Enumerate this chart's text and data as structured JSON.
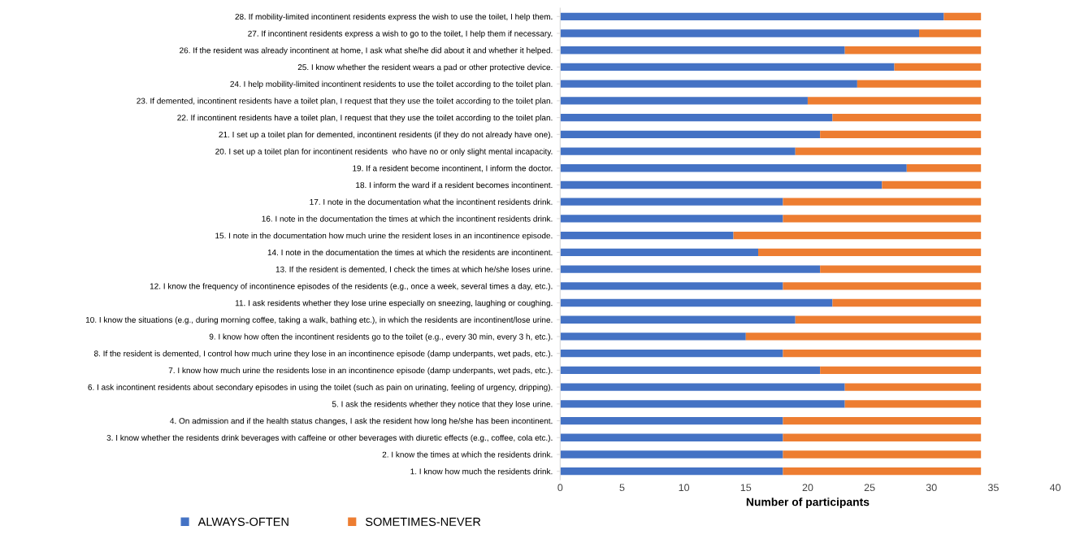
{
  "chart_data": {
    "type": "bar",
    "orientation": "horizontal",
    "stacked": true,
    "xlabel": "Number of participants",
    "categories": [
      "28. If mobility-limited incontinent residents express the wish to use the toilet, I help them.",
      "27. If incontinent residents express a wish to go to the toilet, I help them if necessary.",
      "26. If the resident was already incontinent at home, I ask what she/he did about it and whether it helped.",
      "25. I know whether the resident wears a pad or other protective device.",
      "24. I help mobility-limited incontinent residents to use the toilet according to the toilet plan.",
      "23. If demented, incontinent residents have a toilet plan, I request that they use the toilet according to the toilet plan.",
      "22. If incontinent residents have a toilet plan, I request that they use the toilet according to the toilet plan.",
      "21. I set up a toilet plan for demented, incontinent residents (if they do not already have one).",
      "20. I set up a toilet plan for incontinent residents  who have no or only slight mental incapacity.",
      "19. If a resident become incontinent, I inform the doctor.",
      "18. I inform the ward if a resident becomes incontinent.",
      "17. I note in the documentation what the incontinent residents drink.",
      "16. I note in the documentation the times at which the incontinent residents drink.",
      "15. I note in the documentation how much urine the resident loses in an incontinence episode.",
      "14. I note in the documentation the times at which the residents are incontinent.",
      "13. If the resident is demented, I check the times at which he/she loses urine.",
      "12. I know the frequency of incontinence episodes of the residents (e.g., once a week, several times a day, etc.).",
      "11. I ask residents whether they lose urine especially on sneezing, laughing or coughing.",
      "10. I know the situations (e.g., during morning coffee, taking a walk, bathing etc.), in which the residents are incontinent/lose urine.",
      "9. I know how often the incontinent residents go to the toilet (e.g., every 30 min, every 3 h, etc.).",
      "8. If the resident is demented, I control how much urine they lose in an incontinence episode (damp underpants, wet pads, etc.).",
      "7. I know how much urine the residents lose in an incontinence episode (damp underpants, wet pads, etc.).",
      "6. I ask incontinent residents about secondary episodes in using the toilet (such as pain on urinating, feeling of urgency, dripping).",
      "5. I ask the residents whether they notice that they lose urine.",
      "4. On admission and if the health status changes, I ask the resident how long he/she has been incontinent.",
      "3. I know whether the residents drink beverages with caffeine or other beverages with diuretic effects (e.g., coffee, cola etc.).",
      "2. I know the times at which the residents drink.",
      "1. I know how much the residents drink."
    ],
    "series": [
      {
        "name": "ALWAYS-OFTEN",
        "color": "#4472c4",
        "values": [
          31,
          29,
          23,
          27,
          24,
          20,
          22,
          21,
          19,
          28,
          26,
          18,
          18,
          14,
          16,
          21,
          18,
          22,
          19,
          15,
          18,
          21,
          23,
          23,
          18,
          18,
          18,
          18
        ]
      },
      {
        "name": "SOMETIMES-NEVER",
        "color": "#ed7d31",
        "values": [
          3,
          5,
          11,
          7,
          10,
          14,
          12,
          13,
          15,
          6,
          8,
          16,
          16,
          20,
          18,
          13,
          16,
          12,
          15,
          19,
          16,
          13,
          11,
          11,
          16,
          16,
          16,
          16
        ]
      }
    ],
    "xlim": [
      0,
      40
    ],
    "xticks": [
      0,
      5,
      10,
      15,
      20,
      25,
      30,
      35,
      40
    ],
    "grid": false,
    "legend": "bottom"
  }
}
